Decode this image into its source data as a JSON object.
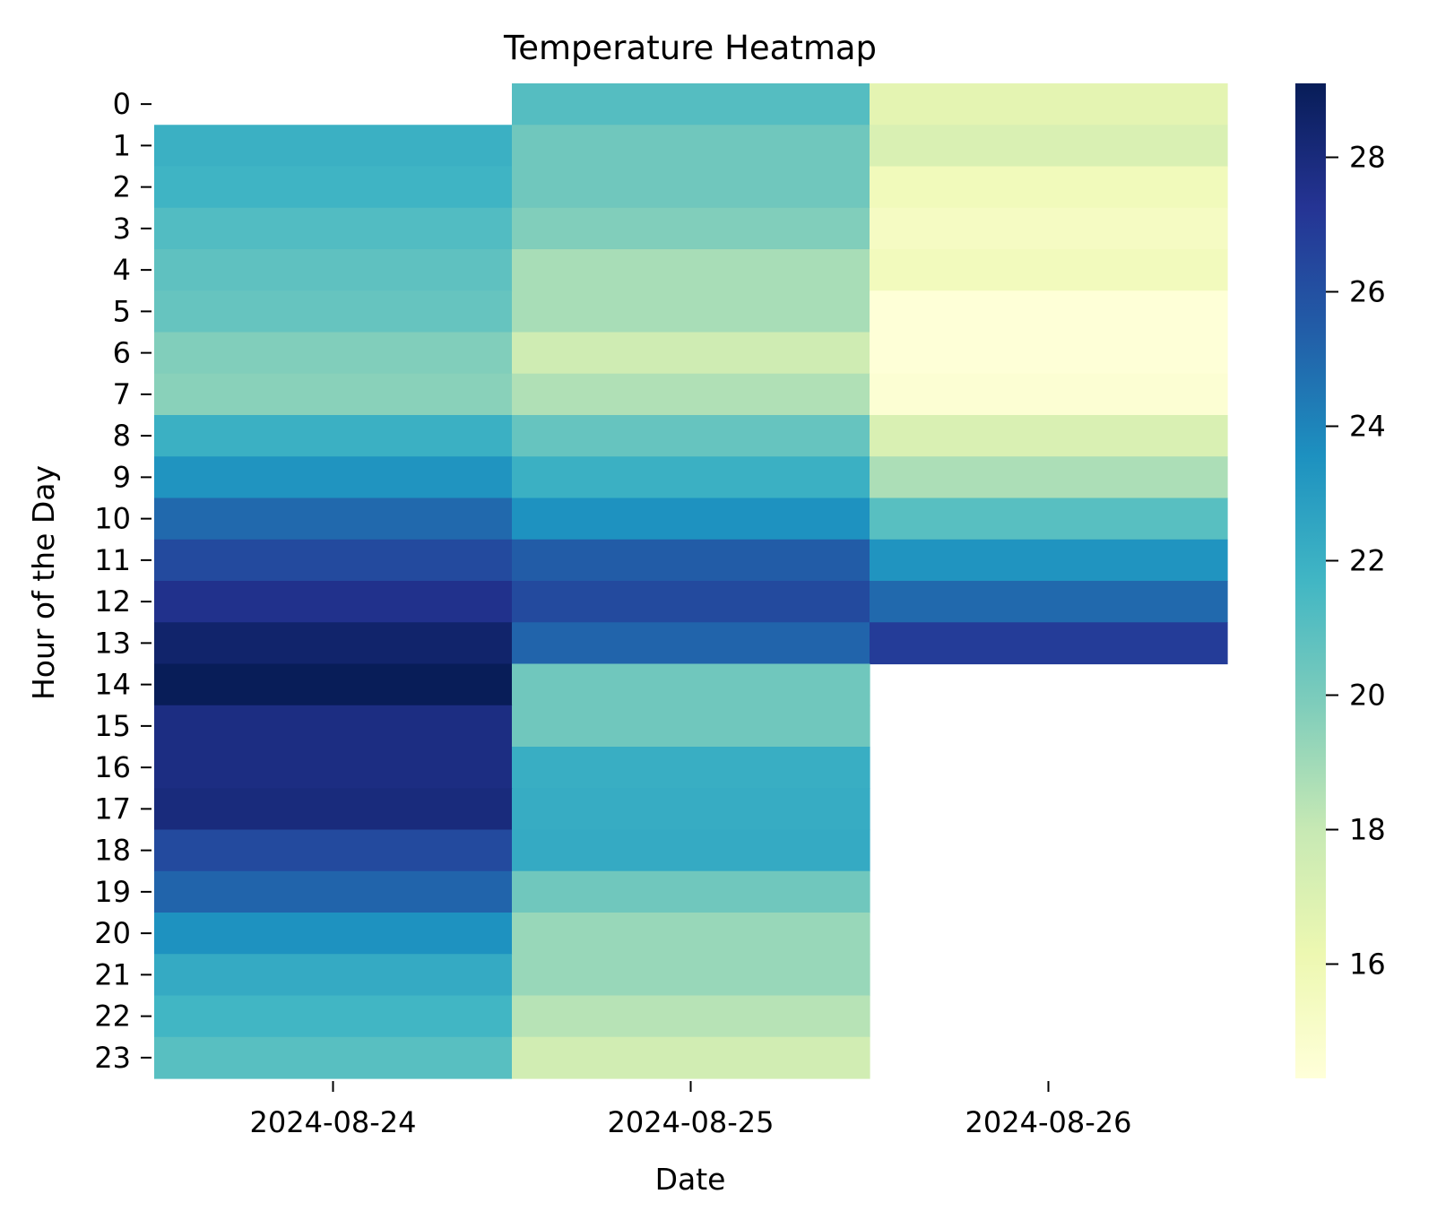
{
  "chart_data": {
    "type": "heatmap",
    "title": "Temperature Heatmap",
    "xlabel": "Date",
    "ylabel": "Hour of the Day",
    "columns": [
      "2024-08-24",
      "2024-08-25",
      "2024-08-26"
    ],
    "rows": [
      "0",
      "1",
      "2",
      "3",
      "4",
      "5",
      "6",
      "7",
      "8",
      "9",
      "10",
      "11",
      "12",
      "13",
      "14",
      "15",
      "16",
      "17",
      "18",
      "19",
      "20",
      "21",
      "22",
      "23"
    ],
    "values": [
      [
        null,
        21.1,
        16.6
      ],
      [
        22.0,
        20.3,
        17.1
      ],
      [
        21.8,
        20.3,
        15.7
      ],
      [
        21.2,
        19.8,
        15.3
      ],
      [
        20.8,
        18.8,
        15.6
      ],
      [
        20.6,
        18.8,
        14.4
      ],
      [
        19.8,
        17.6,
        14.4
      ],
      [
        19.6,
        18.6,
        14.6
      ],
      [
        22.0,
        20.6,
        17.1
      ],
      [
        23.4,
        22.0,
        18.7
      ],
      [
        25.0,
        23.5,
        21.0
      ],
      [
        26.3,
        25.5,
        23.4
      ],
      [
        27.5,
        26.3,
        25.0
      ],
      [
        28.5,
        25.2,
        26.9
      ],
      [
        29.1,
        20.3,
        null
      ],
      [
        27.8,
        20.3,
        null
      ],
      [
        27.8,
        22.1,
        null
      ],
      [
        28.0,
        22.2,
        null
      ],
      [
        26.3,
        22.3,
        null
      ],
      [
        25.2,
        20.3,
        null
      ],
      [
        23.5,
        19.2,
        null
      ],
      [
        22.3,
        19.2,
        null
      ],
      [
        21.7,
        18.4,
        null
      ],
      [
        21.0,
        17.5,
        null
      ]
    ],
    "colorbar": {
      "min": 14.3,
      "max": 29.1,
      "ticks": [
        "16",
        "18",
        "20",
        "22",
        "24",
        "26",
        "28"
      ],
      "colormap": "YlGnBu",
      "stops": [
        "#ffffd9",
        "#edf8b1",
        "#c7e9b4",
        "#7fcdbb",
        "#41b6c4",
        "#1d91c0",
        "#225ea8",
        "#253494",
        "#081d58"
      ]
    },
    "grid": false,
    "legend": "colorbar-right"
  }
}
